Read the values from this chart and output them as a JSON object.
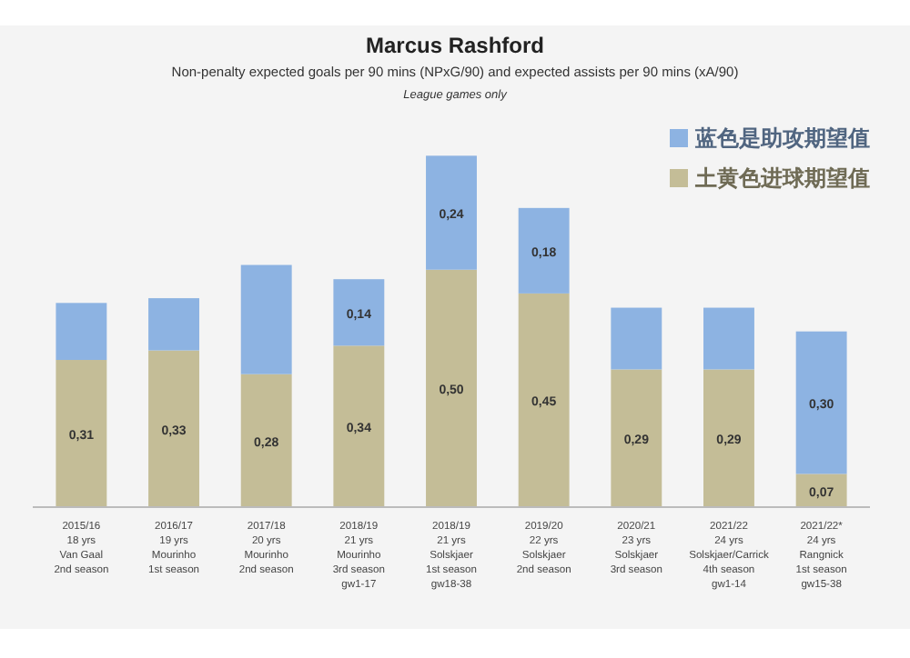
{
  "chart_data": {
    "type": "bar",
    "stacked": true,
    "title": "Marcus Rashford",
    "subtitle": "Non-penalty expected goals per 90 mins (NPxG/90) and expected assists per 90 mins (xA/90)",
    "annotations": [
      "League games only"
    ],
    "categories": [
      "2015/16\n18 yrs\n\nVan Gaal\n2nd season",
      "2016/17\n19 yrs\n\nMourinho\n1st season",
      "2017/18\n20 yrs\n\nMourinho\n2nd season",
      "2018/19\n21 yrs\n\nMourinho\n3rd season\ngw1-17",
      "2018/19\n21 yrs\n\nSolskjaer\n1st season\ngw18-38",
      "2019/20\n22 yrs\n\nSolskjaer\n2nd season",
      "2020/21\n23 yrs\n\nSolskjaer\n3rd season",
      "2021/22\n24 yrs\n\nSolskjaer/Carrick\n4th season\ngw1-14",
      "2021/22*\n24 yrs\n\nRangnick\n1st season\ngw15-38"
    ],
    "ylim": [
      0,
      0.8
    ],
    "tick_labels": "x",
    "legend": "top right",
    "series": [
      {
        "name": "土黄色进球期望值",
        "color": "#c4bd97",
        "values": [
          0.31,
          0.33,
          0.28,
          0.34,
          0.5,
          0.45,
          0.29,
          0.29,
          0.07
        ],
        "value_labels": [
          "0,31",
          "0,33",
          "0,28",
          "0,34",
          "0,50",
          "0,45",
          "0,29",
          "0,29",
          "0,07"
        ]
      },
      {
        "name": "蓝色是助攻期望值",
        "color": "#8db3e2",
        "values": [
          0.12,
          0.11,
          0.23,
          0.14,
          0.24,
          0.18,
          0.13,
          0.13,
          0.3
        ],
        "value_labels": [
          null,
          null,
          null,
          "0,14",
          "0,24",
          "0,18",
          null,
          null,
          "0,30"
        ]
      }
    ]
  }
}
